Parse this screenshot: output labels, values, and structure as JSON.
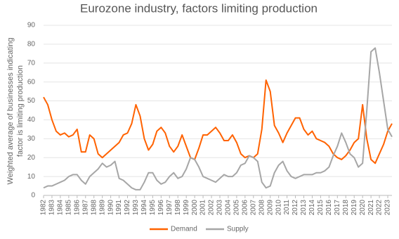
{
  "chart_data": {
    "type": "line",
    "title": "Eurozone industry, factors limiting production",
    "y_label_lines": [
      "Weighted average of businesses indicating",
      "factor is limiting production"
    ],
    "categories": [
      "1982",
      null,
      "1983",
      null,
      "1984",
      null,
      "1985",
      null,
      "1986",
      null,
      "1987",
      null,
      "1988",
      null,
      "1989",
      null,
      "1990",
      null,
      "1991",
      null,
      "1992",
      null,
      "1993",
      null,
      "1994",
      null,
      "1995",
      null,
      "1996",
      null,
      "1997",
      null,
      "1998",
      null,
      "1999",
      null,
      "2000",
      null,
      "2001",
      null,
      "2002",
      null,
      "2003",
      null,
      "2004",
      null,
      "2005",
      null,
      "2006",
      null,
      "2007",
      null,
      "2008",
      null,
      "2009",
      null,
      "2010",
      null,
      "2011",
      null,
      "2012",
      null,
      "2013",
      null,
      "2014",
      null,
      "2015",
      null,
      "2016",
      null,
      "2017",
      null,
      "2018",
      null,
      "2019",
      null,
      "2020",
      null,
      "2021",
      null,
      "2022",
      null,
      "2023",
      null
    ],
    "series": [
      {
        "name": "Demand",
        "color": "#ff6200",
        "values": [
          52,
          48,
          40,
          34,
          32,
          33,
          31,
          32,
          35,
          23,
          23,
          32,
          30,
          22,
          20,
          22,
          24,
          26,
          28,
          32,
          33,
          38,
          48,
          42,
          30,
          24,
          27,
          34,
          36,
          33,
          26,
          23,
          26,
          32,
          26,
          20,
          19,
          25,
          32,
          32,
          34,
          36,
          33,
          29,
          29,
          32,
          28,
          22,
          20,
          21,
          20,
          22,
          35,
          61,
          55,
          37,
          33,
          28,
          33,
          37,
          41,
          41,
          35,
          32,
          34,
          30,
          29,
          28,
          26,
          22,
          20,
          19,
          21,
          24,
          28,
          30,
          48,
          30,
          19,
          17,
          22,
          27,
          34,
          38
        ]
      },
      {
        "name": "Supply",
        "color": "#a6a6a6",
        "values": [
          4,
          5,
          5,
          6,
          7,
          8,
          10,
          11,
          11,
          8,
          6,
          10,
          12,
          14,
          17,
          15,
          16,
          18,
          9,
          8,
          6,
          4,
          3,
          3,
          7,
          12,
          12,
          8,
          6,
          7,
          10,
          12,
          9,
          10,
          14,
          20,
          19,
          15,
          10,
          9,
          8,
          7,
          9,
          11,
          10,
          10,
          12,
          16,
          17,
          21,
          20,
          18,
          7,
          4,
          5,
          12,
          16,
          18,
          13,
          10,
          9,
          10,
          11,
          11,
          11,
          12,
          12,
          13,
          15,
          21,
          26,
          33,
          28,
          22,
          20,
          15,
          17,
          45,
          76,
          78,
          65,
          50,
          35,
          31
        ]
      }
    ],
    "ylim": [
      0,
      90
    ],
    "yticks": [
      0,
      10,
      20,
      30,
      40,
      50,
      60,
      70,
      80,
      90
    ],
    "grid": true
  }
}
